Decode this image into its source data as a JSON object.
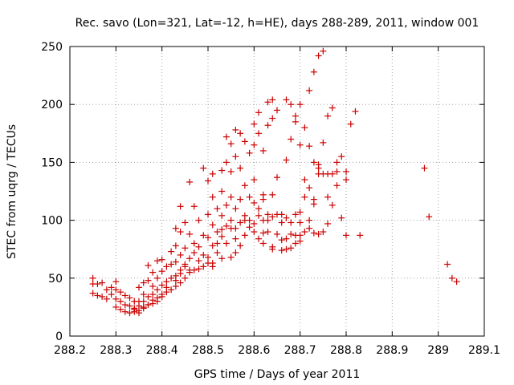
{
  "chart_data": {
    "type": "scatter",
    "title": "Rec. savo (Lon=321, Lat=-12, h=HE), days 288-289, 2011, window 001",
    "xlabel": "GPS time / Days of year 2011",
    "ylabel": "STEC from uqrg / TECUs",
    "xlim": [
      288.2,
      289.1
    ],
    "ylim": [
      0,
      250
    ],
    "xticks": [
      "288.2",
      "288.3",
      "288.4",
      "288.5",
      "288.6",
      "288.7",
      "288.8",
      "288.9",
      "289",
      "289.1"
    ],
    "yticks": [
      "0",
      "50",
      "100",
      "150",
      "200",
      "250"
    ],
    "grid": true,
    "marker": "+",
    "color": "#cc0000",
    "points": [
      [
        288.25,
        50
      ],
      [
        288.25,
        45
      ],
      [
        288.25,
        37
      ],
      [
        288.26,
        45
      ],
      [
        288.26,
        35
      ],
      [
        288.27,
        46
      ],
      [
        288.27,
        34
      ],
      [
        288.28,
        40
      ],
      [
        288.28,
        32
      ],
      [
        288.29,
        42
      ],
      [
        288.29,
        36
      ],
      [
        288.3,
        47
      ],
      [
        288.3,
        40
      ],
      [
        288.3,
        32
      ],
      [
        288.3,
        25
      ],
      [
        288.31,
        38
      ],
      [
        288.31,
        30
      ],
      [
        288.31,
        23
      ],
      [
        288.32,
        35
      ],
      [
        288.32,
        27
      ],
      [
        288.32,
        21
      ],
      [
        288.33,
        33
      ],
      [
        288.33,
        26
      ],
      [
        288.33,
        20
      ],
      [
        288.34,
        30
      ],
      [
        288.34,
        24
      ],
      [
        288.34,
        21
      ],
      [
        288.35,
        42
      ],
      [
        288.35,
        30
      ],
      [
        288.35,
        26
      ],
      [
        288.35,
        22
      ],
      [
        288.36,
        46
      ],
      [
        288.36,
        36
      ],
      [
        288.36,
        30
      ],
      [
        288.36,
        25
      ],
      [
        288.37,
        61
      ],
      [
        288.37,
        48
      ],
      [
        288.37,
        34
      ],
      [
        288.37,
        27
      ],
      [
        288.38,
        55
      ],
      [
        288.38,
        43
      ],
      [
        288.38,
        36
      ],
      [
        288.38,
        28
      ],
      [
        288.39,
        65
      ],
      [
        288.39,
        50
      ],
      [
        288.39,
        40
      ],
      [
        288.39,
        30
      ],
      [
        288.4,
        66
      ],
      [
        288.4,
        56
      ],
      [
        288.4,
        44
      ],
      [
        288.4,
        34
      ],
      [
        288.41,
        60
      ],
      [
        288.41,
        47
      ],
      [
        288.41,
        38
      ],
      [
        288.42,
        73
      ],
      [
        288.42,
        62
      ],
      [
        288.42,
        50
      ],
      [
        288.42,
        40
      ],
      [
        288.43,
        93
      ],
      [
        288.43,
        78
      ],
      [
        288.43,
        64
      ],
      [
        288.43,
        52
      ],
      [
        288.43,
        43
      ],
      [
        288.44,
        112
      ],
      [
        288.44,
        90
      ],
      [
        288.44,
        70
      ],
      [
        288.44,
        57
      ],
      [
        288.44,
        46
      ],
      [
        288.45,
        98
      ],
      [
        288.45,
        76
      ],
      [
        288.45,
        62
      ],
      [
        288.45,
        50
      ],
      [
        288.46,
        133
      ],
      [
        288.46,
        88
      ],
      [
        288.46,
        67
      ],
      [
        288.46,
        55
      ],
      [
        288.47,
        112
      ],
      [
        288.47,
        72
      ],
      [
        288.47,
        57
      ],
      [
        288.48,
        100
      ],
      [
        288.48,
        77
      ],
      [
        288.48,
        58
      ],
      [
        288.49,
        145
      ],
      [
        288.49,
        87
      ],
      [
        288.49,
        70
      ],
      [
        288.49,
        60
      ],
      [
        288.5,
        134
      ],
      [
        288.5,
        105
      ],
      [
        288.5,
        85
      ],
      [
        288.5,
        68
      ],
      [
        288.51,
        140
      ],
      [
        288.51,
        120
      ],
      [
        288.51,
        96
      ],
      [
        288.51,
        78
      ],
      [
        288.51,
        63
      ],
      [
        288.52,
        110
      ],
      [
        288.52,
        90
      ],
      [
        288.52,
        72
      ],
      [
        288.53,
        143
      ],
      [
        288.53,
        125
      ],
      [
        288.53,
        104
      ],
      [
        288.53,
        86
      ],
      [
        288.53,
        67
      ],
      [
        288.54,
        172
      ],
      [
        288.54,
        150
      ],
      [
        288.54,
        113
      ],
      [
        288.54,
        95
      ],
      [
        288.54,
        80
      ],
      [
        288.55,
        166
      ],
      [
        288.55,
        142
      ],
      [
        288.55,
        120
      ],
      [
        288.55,
        100
      ],
      [
        288.55,
        68
      ],
      [
        288.56,
        178
      ],
      [
        288.56,
        155
      ],
      [
        288.56,
        110
      ],
      [
        288.56,
        93
      ],
      [
        288.56,
        72
      ],
      [
        288.57,
        175
      ],
      [
        288.57,
        145
      ],
      [
        288.57,
        118
      ],
      [
        288.57,
        98
      ],
      [
        288.57,
        78
      ],
      [
        288.58,
        168
      ],
      [
        288.58,
        130
      ],
      [
        288.58,
        104
      ],
      [
        288.58,
        87
      ],
      [
        288.59,
        158
      ],
      [
        288.59,
        120
      ],
      [
        288.59,
        100
      ],
      [
        288.6,
        183
      ],
      [
        288.6,
        165
      ],
      [
        288.6,
        135
      ],
      [
        288.6,
        115
      ],
      [
        288.6,
        90
      ],
      [
        288.61,
        193
      ],
      [
        288.61,
        175
      ],
      [
        288.61,
        104
      ],
      [
        288.61,
        84
      ],
      [
        288.62,
        160
      ],
      [
        288.62,
        122
      ],
      [
        288.62,
        100
      ],
      [
        288.62,
        80
      ],
      [
        288.63,
        202
      ],
      [
        288.63,
        182
      ],
      [
        288.63,
        105
      ],
      [
        288.63,
        90
      ],
      [
        288.64,
        204
      ],
      [
        288.64,
        188
      ],
      [
        288.64,
        122
      ],
      [
        288.64,
        103
      ],
      [
        288.64,
        75
      ],
      [
        288.65,
        195
      ],
      [
        288.65,
        137
      ],
      [
        288.65,
        105
      ],
      [
        288.65,
        88
      ],
      [
        288.66,
        74
      ],
      [
        288.66,
        105
      ],
      [
        288.67,
        204
      ],
      [
        288.67,
        152
      ],
      [
        288.67,
        102
      ],
      [
        288.67,
        84
      ],
      [
        288.67,
        75
      ],
      [
        288.68,
        200
      ],
      [
        288.68,
        170
      ],
      [
        288.68,
        98
      ],
      [
        288.68,
        76
      ],
      [
        288.69,
        190
      ],
      [
        288.69,
        185
      ],
      [
        288.69,
        105
      ],
      [
        288.69,
        80
      ],
      [
        288.7,
        200
      ],
      [
        288.7,
        165
      ],
      [
        288.7,
        98
      ],
      [
        288.7,
        87
      ],
      [
        288.71,
        180
      ],
      [
        288.71,
        135
      ],
      [
        288.71,
        120
      ],
      [
        288.71,
        90
      ],
      [
        288.72,
        212
      ],
      [
        288.72,
        164
      ],
      [
        288.72,
        128
      ],
      [
        288.72,
        93
      ],
      [
        288.73,
        228
      ],
      [
        288.73,
        150
      ],
      [
        288.73,
        114
      ],
      [
        288.73,
        89
      ],
      [
        288.74,
        242
      ],
      [
        288.74,
        145
      ],
      [
        288.74,
        140
      ],
      [
        288.74,
        88
      ],
      [
        288.75,
        246
      ],
      [
        288.75,
        167
      ],
      [
        288.75,
        140
      ],
      [
        288.75,
        90
      ],
      [
        288.76,
        190
      ],
      [
        288.76,
        140
      ],
      [
        288.76,
        97
      ],
      [
        288.77,
        197
      ],
      [
        288.77,
        140
      ],
      [
        288.77,
        113
      ],
      [
        288.78,
        150
      ],
      [
        288.78,
        130
      ],
      [
        288.79,
        155
      ],
      [
        288.8,
        142
      ],
      [
        288.8,
        135
      ],
      [
        288.8,
        87
      ],
      [
        288.81,
        183
      ],
      [
        288.82,
        194
      ],
      [
        288.83,
        87
      ],
      [
        288.97,
        145
      ],
      [
        288.98,
        103
      ],
      [
        289.02,
        62
      ],
      [
        289.03,
        50
      ],
      [
        289.04,
        47
      ],
      [
        288.46,
        57
      ],
      [
        288.47,
        80
      ],
      [
        288.48,
        65
      ],
      [
        288.5,
        63
      ],
      [
        288.51,
        60
      ],
      [
        288.52,
        80
      ],
      [
        288.53,
        92
      ],
      [
        288.55,
        93
      ],
      [
        288.56,
        84
      ],
      [
        288.58,
        100
      ],
      [
        288.59,
        94
      ],
      [
        288.6,
        97
      ],
      [
        288.61,
        110
      ],
      [
        288.62,
        118
      ],
      [
        288.63,
        100
      ],
      [
        288.66,
        98
      ],
      [
        288.68,
        88
      ],
      [
        288.7,
        107
      ],
      [
        288.72,
        100
      ],
      [
        288.74,
        148
      ],
      [
        288.76,
        120
      ],
      [
        288.78,
        142
      ],
      [
        288.79,
        102
      ],
      [
        288.73,
        118
      ],
      [
        288.7,
        82
      ],
      [
        288.69,
        87
      ],
      [
        288.66,
        83
      ],
      [
        288.64,
        77
      ],
      [
        288.62,
        89
      ],
      [
        288.45,
        60
      ],
      [
        288.44,
        54
      ],
      [
        288.43,
        48
      ],
      [
        288.41,
        42
      ],
      [
        288.4,
        36
      ],
      [
        288.39,
        33
      ],
      [
        288.38,
        31
      ],
      [
        288.37,
        27
      ],
      [
        288.36,
        24
      ],
      [
        288.35,
        20
      ],
      [
        288.34,
        23
      ]
    ]
  }
}
